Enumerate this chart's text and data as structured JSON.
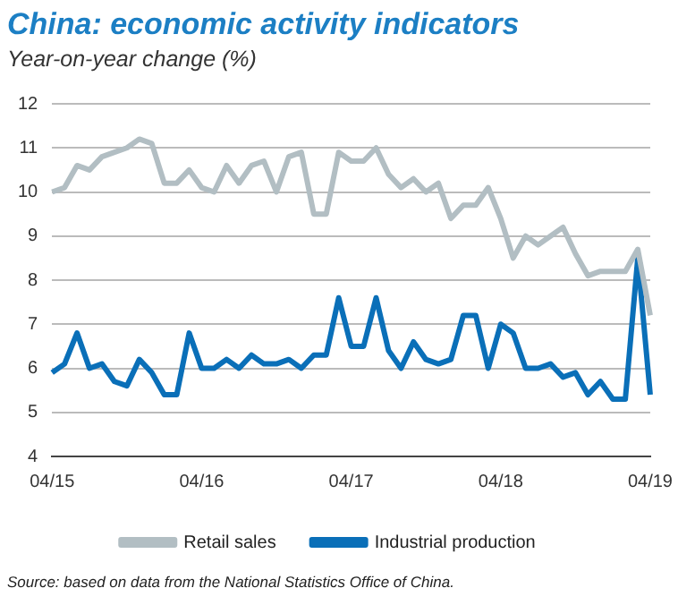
{
  "chart_data": {
    "type": "line",
    "title": "China: economic activity indicators",
    "subtitle": "Year-on-year change (%)",
    "categories": [
      "04/15",
      null,
      null,
      null,
      null,
      null,
      null,
      null,
      null,
      null,
      null,
      null,
      "04/16",
      null,
      null,
      null,
      null,
      null,
      null,
      null,
      null,
      null,
      null,
      null,
      "04/17",
      null,
      null,
      null,
      null,
      null,
      null,
      null,
      null,
      null,
      null,
      null,
      "04/18",
      null,
      null,
      null,
      null,
      null,
      null,
      null,
      null,
      null,
      null,
      null,
      "04/19"
    ],
    "series": [
      {
        "name": "Retail sales",
        "color": "#b2bec3",
        "values": [
          10.0,
          10.1,
          10.6,
          10.5,
          10.8,
          10.9,
          11.0,
          11.2,
          11.1,
          10.2,
          10.2,
          10.5,
          10.1,
          10.0,
          10.6,
          10.2,
          10.6,
          10.7,
          10.0,
          10.8,
          10.9,
          9.5,
          9.5,
          10.9,
          10.7,
          10.7,
          11.0,
          10.4,
          10.1,
          10.3,
          10.0,
          10.2,
          9.4,
          9.7,
          9.7,
          10.1,
          9.4,
          8.5,
          9.0,
          8.8,
          9.0,
          9.2,
          8.6,
          8.1,
          8.2,
          8.2,
          8.2,
          8.7,
          7.2
        ]
      },
      {
        "name": "Industrial production",
        "color": "#0a6fb8",
        "values": [
          5.9,
          6.1,
          6.8,
          6.0,
          6.1,
          5.7,
          5.6,
          6.2,
          5.9,
          5.4,
          5.4,
          6.8,
          6.0,
          6.0,
          6.2,
          6.0,
          6.3,
          6.1,
          6.1,
          6.2,
          6.0,
          6.3,
          6.3,
          7.6,
          6.5,
          6.5,
          7.6,
          6.4,
          6.0,
          6.6,
          6.2,
          6.1,
          6.2,
          7.2,
          7.2,
          6.0,
          7.0,
          6.8,
          6.0,
          6.0,
          6.1,
          5.8,
          5.9,
          5.4,
          5.7,
          5.3,
          5.3,
          8.5,
          5.4
        ]
      }
    ],
    "ylim": [
      4,
      12
    ],
    "yticks": [
      4,
      5,
      6,
      7,
      8,
      9,
      10,
      11,
      12
    ],
    "grid": "y",
    "legend": "bottom",
    "marker": "none",
    "line_style": "solid",
    "annotations": [
      "Source: based on data from the National Statistics Office of China."
    ]
  }
}
